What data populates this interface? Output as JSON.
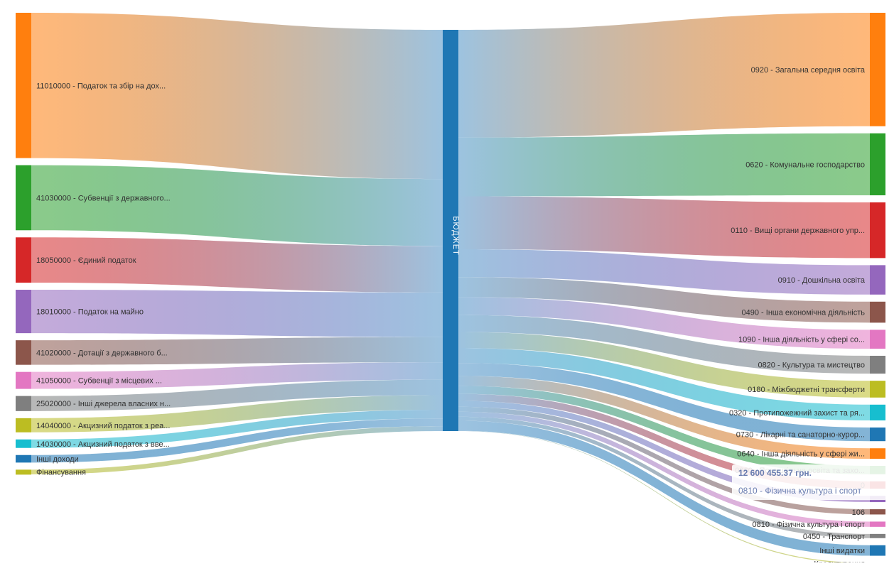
{
  "chart_data": {
    "type": "sankey",
    "center": {
      "name": "БЮДЖЕТ",
      "color": "#1f77b4"
    },
    "sources": [
      {
        "name": "11010000 - Податок та збір на дох...",
        "color": "#ff7f0e",
        "value": 154
      },
      {
        "name": "41030000 - Субвенції з державного...",
        "color": "#2ca02c",
        "value": 69
      },
      {
        "name": "18050000 - Єдиний податок",
        "color": "#d62728",
        "value": 48
      },
      {
        "name": "18010000 - Податок на майно",
        "color": "#9467bd",
        "value": 46
      },
      {
        "name": "41020000 - Дотації з державного б...",
        "color": "#8c564b",
        "value": 26
      },
      {
        "name": "41050000 - Субвенції з місцевих ...",
        "color": "#e377c2",
        "value": 18
      },
      {
        "name": "25020000 - Інші джерела власних н...",
        "color": "#7f7f7f",
        "value": 16
      },
      {
        "name": "14040000 - Акцизний податок з реа...",
        "color": "#bcbd22",
        "value": 15
      },
      {
        "name": "14030000 - Акцизний податок з вве...",
        "color": "#17becf",
        "value": 9
      },
      {
        "name": "Інші доходи",
        "color": "#1f77b4",
        "value": 8
      },
      {
        "name": "Фінансування",
        "color": "#bcbd22",
        "value": 5
      }
    ],
    "targets": [
      {
        "name": "0920 - Загальна середня освіта",
        "color": "#ff7f0e",
        "value": 108
      },
      {
        "name": "0620 - Комунальне господарство",
        "color": "#2ca02c",
        "value": 59
      },
      {
        "name": "0110 - Вищі органи державного упр...",
        "color": "#d62728",
        "value": 53
      },
      {
        "name": "0910 - Дошкільна освіта",
        "color": "#9467bd",
        "value": 28
      },
      {
        "name": "0490 - Інша економічна діяльність",
        "color": "#8c564b",
        "value": 20
      },
      {
        "name": "1090 - Інша діяльність у сфері со...",
        "color": "#e377c2",
        "value": 18
      },
      {
        "name": "0820 - Культура та мистецтво",
        "color": "#7f7f7f",
        "value": 17
      },
      {
        "name": "0180 - Міжбюджетні трансферти",
        "color": "#bcbd22",
        "value": 16
      },
      {
        "name": "0320 - Протипожежний захист та ря...",
        "color": "#17becf",
        "value": 15
      },
      {
        "name": "0730 - Лікарні та санаторно-курор...",
        "color": "#1f77b4",
        "value": 13
      },
      {
        "name": "0640 - Інша діяльність у сфері жи...",
        "color": "#ff7f0e",
        "value": 10
      },
      {
        "name": "0960 - Позашкільна освіта та захо...",
        "color": "#2ca02c",
        "value": 8
      },
      {
        "name": "0",
        "color": "#d62728",
        "value": 7
      },
      {
        "name": "",
        "color": "#9467bd",
        "value": 6
      },
      {
        "name": "106",
        "color": "#8c564b",
        "value": 5
      },
      {
        "name": "0810 - Фізична культура і спорт",
        "color": "#e377c2",
        "value": 5
      },
      {
        "name": "0450 - Транспорт",
        "color": "#7f7f7f",
        "value": 4
      },
      {
        "name": "Інші видатки",
        "color": "#1f77b4",
        "value": 10
      },
      {
        "name": "Кредитування",
        "color": "#bcbd22",
        "value": 0.3
      }
    ]
  },
  "tooltip": {
    "value": "12 600 455.37 грн.",
    "name": "0810 - Фізична культура і спорт"
  }
}
